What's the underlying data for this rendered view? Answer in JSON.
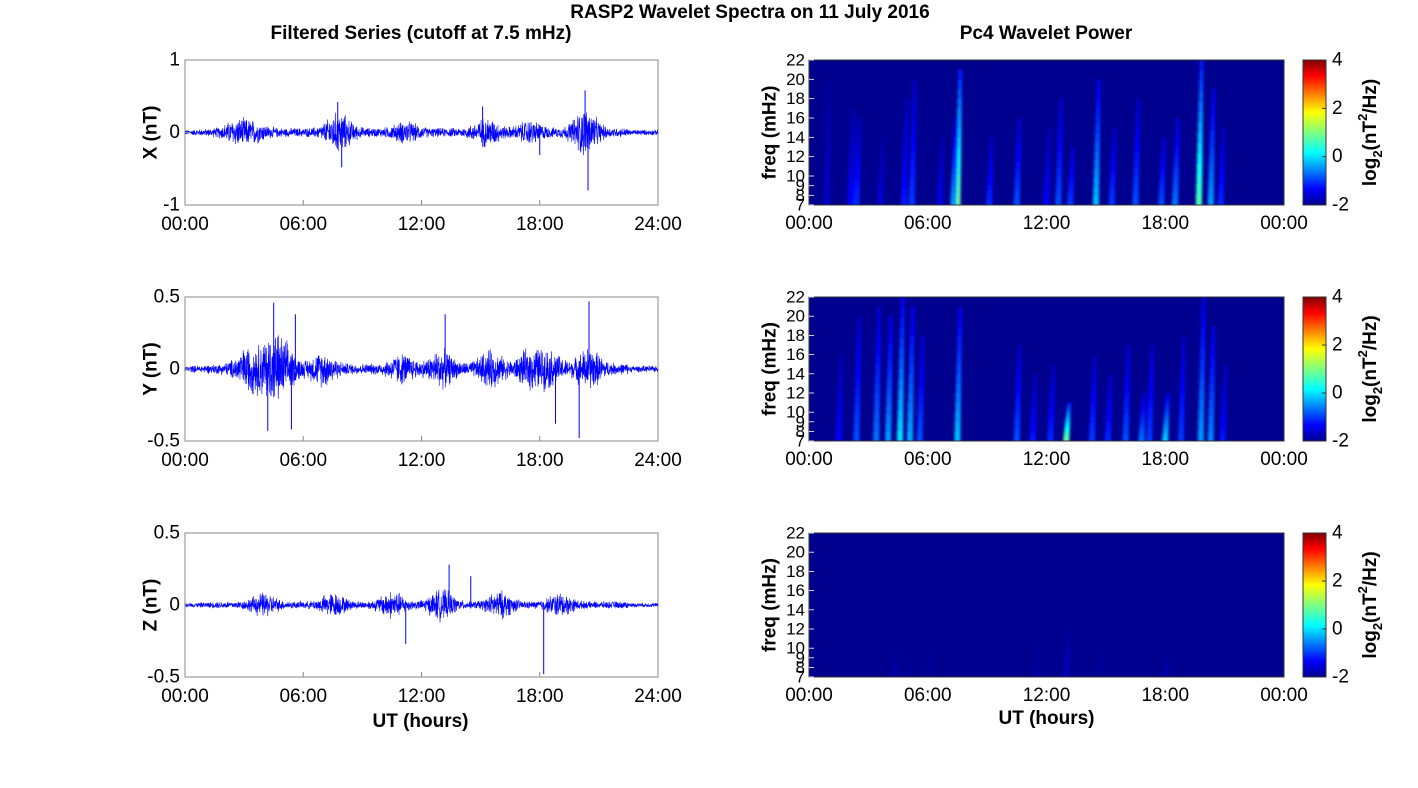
{
  "figure": {
    "title": "RASP2 Wavelet Spectra on 11 July 2016",
    "left_column_title": "Filtered Series (cutoff at 7.5 mHz)",
    "right_column_title": "Pc4 Wavelet Power"
  },
  "colors": {
    "trace": "#0000ff",
    "field": "#00008f"
  },
  "chart_data": [
    {
      "type": "line",
      "component": "X",
      "ylabel": "X (nT)",
      "xlabel": "",
      "x_ticks": [
        "00:00",
        "06:00",
        "12:00",
        "18:00",
        "24:00"
      ],
      "xlim_hours": [
        0,
        24
      ],
      "ylim": [
        -1,
        1
      ],
      "y_ticks": [
        1,
        0,
        -1
      ],
      "noise_baseline": 0.05,
      "bursts": [
        [
          2.6,
          0.09
        ],
        [
          3.5,
          0.07
        ],
        [
          7.8,
          0.18
        ],
        [
          11.2,
          0.08
        ],
        [
          15.3,
          0.12
        ],
        [
          17.5,
          0.09
        ],
        [
          20.3,
          0.22
        ]
      ],
      "spikes": [
        [
          7.75,
          0.42
        ],
        [
          7.95,
          -0.48
        ],
        [
          15.1,
          0.36
        ],
        [
          18.0,
          -0.31
        ],
        [
          20.3,
          0.58
        ],
        [
          20.45,
          -0.8
        ]
      ]
    },
    {
      "type": "line",
      "component": "Y",
      "ylabel": "Y (nT)",
      "xlabel": "",
      "x_ticks": [
        "00:00",
        "06:00",
        "12:00",
        "18:00",
        "24:00"
      ],
      "xlim_hours": [
        0,
        24
      ],
      "ylim": [
        -0.5,
        0.5
      ],
      "y_ticks": [
        0.5,
        0,
        -0.5
      ],
      "noise_baseline": 0.03,
      "bursts": [
        [
          3.2,
          0.09
        ],
        [
          4.3,
          0.12
        ],
        [
          5.0,
          0.1
        ],
        [
          7.0,
          0.07
        ],
        [
          11.0,
          0.06
        ],
        [
          13.0,
          0.08
        ],
        [
          15.5,
          0.08
        ],
        [
          17.5,
          0.08
        ],
        [
          18.5,
          0.07
        ],
        [
          20.5,
          0.09
        ]
      ],
      "spikes": [
        [
          4.5,
          0.46
        ],
        [
          4.2,
          -0.43
        ],
        [
          5.6,
          0.38
        ],
        [
          5.4,
          -0.42
        ],
        [
          13.2,
          0.38
        ],
        [
          18.8,
          -0.38
        ],
        [
          20.5,
          0.47
        ],
        [
          20.0,
          -0.48
        ]
      ]
    },
    {
      "type": "line",
      "component": "Z",
      "ylabel": "Z (nT)",
      "xlabel": "UT (hours)",
      "x_ticks": [
        "00:00",
        "06:00",
        "12:00",
        "18:00",
        "24:00"
      ],
      "xlim_hours": [
        0,
        24
      ],
      "ylim": [
        -0.5,
        0.5
      ],
      "y_ticks": [
        0.5,
        0,
        -0.5
      ],
      "noise_baseline": 0.02,
      "bursts": [
        [
          4.0,
          0.05
        ],
        [
          7.5,
          0.05
        ],
        [
          10.5,
          0.06
        ],
        [
          13.0,
          0.07
        ],
        [
          16.0,
          0.06
        ],
        [
          19.0,
          0.05
        ]
      ],
      "spikes": [
        [
          13.4,
          0.28
        ],
        [
          11.2,
          -0.27
        ],
        [
          18.2,
          -0.48
        ],
        [
          14.5,
          0.2
        ]
      ]
    },
    {
      "type": "heatmap",
      "component": "X",
      "ylabel": "freq (mHz)",
      "xlabel": "",
      "x_ticks": [
        "00:00",
        "06:00",
        "12:00",
        "18:00",
        "00:00"
      ],
      "y_ticks": [
        22,
        20,
        18,
        16,
        14,
        12,
        10,
        9,
        8,
        7
      ],
      "ylim_mHz": [
        7,
        22
      ],
      "colorbar_label": "log",
      "colorbar_label_sub": "2",
      "colorbar_label_mid": "(nT",
      "colorbar_label_sup": "2",
      "colorbar_label_end": "/Hz)",
      "colorbar_ticks": [
        4,
        2,
        0,
        -2
      ],
      "clim": [
        -2,
        4
      ],
      "streaks": [
        [
          0.9,
          0.3,
          20
        ],
        [
          2.1,
          0.6,
          17
        ],
        [
          2.4,
          0.8,
          16
        ],
        [
          3.6,
          0.4,
          14
        ],
        [
          4.8,
          0.7,
          18
        ],
        [
          5.2,
          0.9,
          20
        ],
        [
          6.6,
          0.5,
          14
        ],
        [
          7.5,
          2.6,
          21
        ],
        [
          7.3,
          1.4,
          16
        ],
        [
          9.1,
          0.8,
          14
        ],
        [
          10.5,
          1.0,
          16
        ],
        [
          12.0,
          0.6,
          15
        ],
        [
          12.6,
          1.0,
          18
        ],
        [
          13.2,
          0.9,
          13
        ],
        [
          14.5,
          1.6,
          20
        ],
        [
          15.3,
          0.9,
          15
        ],
        [
          16.5,
          1.0,
          18
        ],
        [
          17.8,
          1.0,
          14
        ],
        [
          18.5,
          1.2,
          16
        ],
        [
          19.7,
          2.4,
          22
        ],
        [
          20.3,
          1.4,
          19
        ],
        [
          20.8,
          0.8,
          15
        ]
      ]
    },
    {
      "type": "heatmap",
      "component": "Y",
      "ylabel": "freq (mHz)",
      "xlabel": "",
      "x_ticks": [
        "00:00",
        "06:00",
        "12:00",
        "18:00",
        "00:00"
      ],
      "y_ticks": [
        22,
        20,
        18,
        16,
        14,
        12,
        10,
        9,
        8,
        7
      ],
      "ylim_mHz": [
        7,
        22
      ],
      "colorbar_label": "log",
      "colorbar_label_sub": "2",
      "colorbar_label_mid": "(nT",
      "colorbar_label_sup": "2",
      "colorbar_label_end": "/Hz)",
      "colorbar_ticks": [
        4,
        2,
        0,
        -2
      ],
      "clim": [
        -2,
        4
      ],
      "streaks": [
        [
          1.5,
          0.6,
          16
        ],
        [
          2.4,
          1.0,
          20
        ],
        [
          3.4,
          1.2,
          21
        ],
        [
          4.0,
          1.4,
          20
        ],
        [
          4.6,
          1.8,
          22
        ],
        [
          5.1,
          1.5,
          21
        ],
        [
          5.6,
          1.0,
          18
        ],
        [
          7.5,
          1.6,
          21
        ],
        [
          10.5,
          1.0,
          17
        ],
        [
          11.3,
          0.7,
          14
        ],
        [
          12.2,
          0.8,
          15
        ],
        [
          13.0,
          2.6,
          11
        ],
        [
          14.3,
          0.9,
          16
        ],
        [
          15.1,
          0.8,
          14
        ],
        [
          16.0,
          1.0,
          17
        ],
        [
          16.8,
          1.2,
          12
        ],
        [
          17.2,
          0.9,
          17
        ],
        [
          18.0,
          1.7,
          12
        ],
        [
          18.8,
          0.9,
          18
        ],
        [
          19.8,
          1.4,
          22
        ],
        [
          20.3,
          1.3,
          19
        ],
        [
          20.9,
          0.7,
          15
        ]
      ]
    },
    {
      "type": "heatmap",
      "component": "Z",
      "ylabel": "freq (mHz)",
      "xlabel": "UT (hours)",
      "x_ticks": [
        "00:00",
        "06:00",
        "12:00",
        "18:00",
        "00:00"
      ],
      "y_ticks": [
        22,
        20,
        18,
        16,
        14,
        12,
        10,
        9,
        8,
        7
      ],
      "ylim_mHz": [
        7,
        22
      ],
      "colorbar_label": "log",
      "colorbar_label_sub": "2",
      "colorbar_label_mid": "(nT",
      "colorbar_label_sup": "2",
      "colorbar_label_end": "/Hz)",
      "colorbar_ticks": [
        4,
        2,
        0,
        -2
      ],
      "clim": [
        -2,
        4
      ],
      "streaks": [
        [
          4.3,
          0.12,
          10
        ],
        [
          5.0,
          0.1,
          9
        ],
        [
          6.0,
          0.08,
          10
        ],
        [
          11.5,
          0.1,
          11
        ],
        [
          13.0,
          0.25,
          12
        ],
        [
          14.6,
          0.08,
          10
        ],
        [
          18.0,
          0.2,
          9
        ]
      ]
    }
  ]
}
